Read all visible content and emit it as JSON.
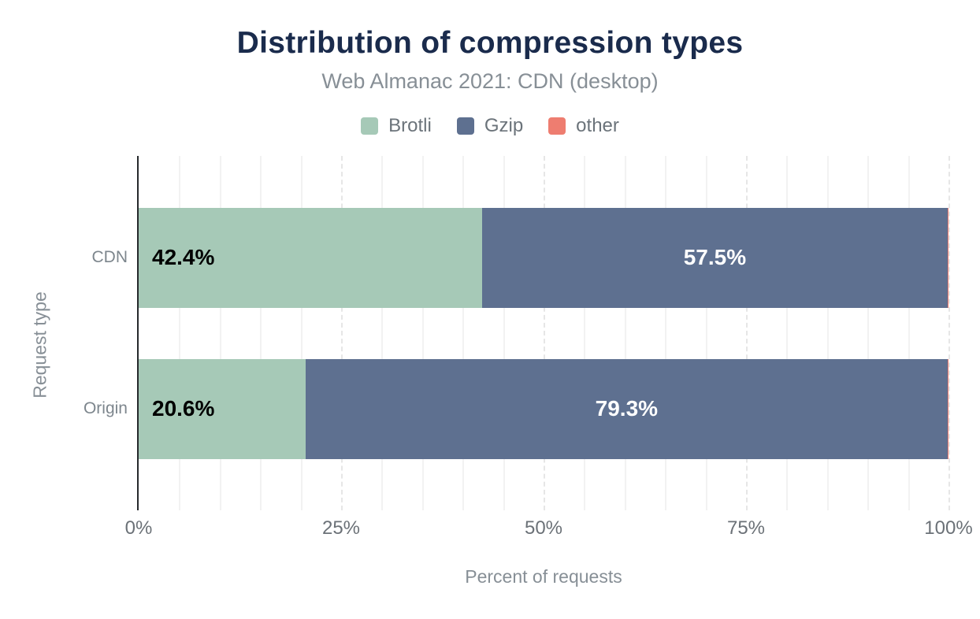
{
  "colors": {
    "background": "#ffffff",
    "title_text": "#1a2b4c",
    "subtitle_text": "#878f96",
    "axis_line": "#26292c",
    "tick_text": "#6b7177",
    "category_text": "#7d868d",
    "grid_minor": "#f2f2f2",
    "grid_major": "#e6e6e6",
    "brotli": "#a6c9b7",
    "gzip": "#5e7090",
    "other": "#ee7d70"
  },
  "chart_data": {
    "type": "bar",
    "orientation": "horizontal",
    "stacked": true,
    "title": "Distribution of compression types",
    "subtitle": "Web Almanac 2021: CDN (desktop)",
    "xlabel": "Percent of requests",
    "ylabel": "Request type",
    "xlim": [
      0,
      100
    ],
    "grid": true,
    "minor_grid_step_pct": 5,
    "major_grid_step_pct": 25,
    "legend_position": "top",
    "x_ticks": [
      {
        "value": 0,
        "label": "0%"
      },
      {
        "value": 25,
        "label": "25%"
      },
      {
        "value": 50,
        "label": "50%"
      },
      {
        "value": 75,
        "label": "75%"
      },
      {
        "value": 100,
        "label": "100%"
      }
    ],
    "categories": [
      "CDN",
      "Origin"
    ],
    "series": [
      {
        "name": "Brotli",
        "color": "#a6c9b7",
        "values": [
          42.4,
          20.6
        ],
        "data_labels": [
          "42.4%",
          "20.6%"
        ],
        "label_color": "#000000",
        "label_align": "left"
      },
      {
        "name": "Gzip",
        "color": "#5e7090",
        "values": [
          57.5,
          79.3
        ],
        "data_labels": [
          "57.5%",
          "79.3%"
        ],
        "label_color": "#ffffff",
        "label_align": "center"
      },
      {
        "name": "other",
        "color": "#ee7d70",
        "values": [
          0.1,
          0.1
        ],
        "data_labels": [
          "",
          ""
        ],
        "label_color": "#000000",
        "label_align": "center"
      }
    ]
  }
}
